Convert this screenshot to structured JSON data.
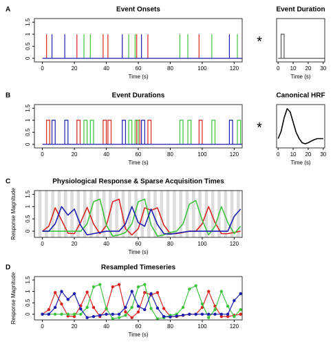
{
  "chart_data": [
    {
      "type": "stem",
      "label": "A",
      "title": "Event Onsets",
      "xlabel": "Time (s)",
      "xlim": [
        -5,
        125
      ],
      "xticks": [
        0,
        20,
        40,
        60,
        80,
        100,
        120
      ],
      "ylim": [
        -0.15,
        1.65
      ],
      "yticks": [
        0,
        0.5,
        1,
        1.5
      ],
      "series": [
        {
          "color": "#d9241f",
          "x": [
            2.6,
            21.6,
            38,
            41,
            59,
            66,
            98
          ],
          "values": [
            1,
            1,
            1,
            1,
            1,
            1,
            1
          ]
        },
        {
          "color": "#3cc43c",
          "x": [
            26,
            30,
            54,
            58,
            86,
            91,
            106,
            122
          ],
          "values": [
            1,
            1,
            1,
            1,
            1,
            1,
            1,
            1
          ]
        },
        {
          "color": "#1c1cae",
          "x": [
            6,
            14,
            50,
            62,
            117
          ],
          "values": [
            1,
            1,
            1,
            1,
            1
          ]
        }
      ]
    },
    {
      "type": "step",
      "label": "B",
      "title": "Event Durations",
      "xlabel": "Time (s)",
      "duration": 2,
      "xlim": [
        -5,
        125
      ],
      "xticks": [
        0,
        20,
        40,
        60,
        80,
        100,
        120
      ],
      "ylim": [
        -0.15,
        1.65
      ],
      "yticks": [
        0,
        0.5,
        1,
        1.5
      ],
      "series": [
        {
          "color": "#d9241f",
          "x": [
            2.6,
            21.6,
            38,
            41,
            59,
            66,
            98
          ],
          "values": [
            1,
            1,
            1,
            1,
            1,
            1,
            1
          ]
        },
        {
          "color": "#3cc43c",
          "x": [
            26,
            30,
            54,
            58,
            86,
            91,
            106,
            122
          ],
          "values": [
            1,
            1,
            1,
            1,
            1,
            1,
            1,
            1
          ]
        },
        {
          "color": "#1c1cae",
          "x": [
            6,
            14,
            50,
            62,
            117
          ],
          "values": [
            1,
            1,
            1,
            1,
            1
          ]
        }
      ]
    },
    {
      "type": "line",
      "label": "C",
      "title": "Physiological Response & Sparse Acquisition Times",
      "xlabel": "Time (s)",
      "ylabel": "Response Magnitude",
      "bands": true,
      "xlim": [
        -5,
        125
      ],
      "xticks": [
        0,
        20,
        40,
        60,
        80,
        100,
        120
      ],
      "ylim": [
        -0.25,
        1.65
      ],
      "yticks": [
        0,
        0.5,
        1,
        1.5
      ],
      "x": [
        0,
        4,
        8,
        12,
        16,
        20,
        24,
        28,
        32,
        36,
        40,
        44,
        48,
        52,
        56,
        60,
        64,
        68,
        72,
        76,
        80,
        84,
        88,
        92,
        96,
        100,
        104,
        108,
        112,
        116,
        120,
        124
      ],
      "series": [
        {
          "color": "#d9241f",
          "values": [
            0,
            0.2,
            0.95,
            0.45,
            -0.08,
            -0.1,
            0.37,
            0.97,
            0.3,
            -0.1,
            0.23,
            1.2,
            1.3,
            0.1,
            -0.15,
            0.1,
            0.95,
            0.85,
            0.95,
            0.25,
            -0.1,
            -0.1,
            -0.05,
            0,
            0,
            0.3,
            1.0,
            0.35,
            -0.1,
            -0.1,
            -0.05,
            0
          ]
        },
        {
          "color": "#3cc43c",
          "values": [
            0,
            0,
            0,
            0,
            0,
            0,
            0,
            0.3,
            1.2,
            1.3,
            0.25,
            -0.2,
            -0.15,
            -0.05,
            0.3,
            1.2,
            1.3,
            0.25,
            -0.2,
            -0.15,
            -0.05,
            0,
            0.3,
            1.1,
            1.25,
            0.45,
            -0.15,
            0.2,
            1.0,
            0.35,
            -0.1,
            0.2
          ]
        },
        {
          "color": "#1c1cae",
          "values": [
            0,
            0,
            0.3,
            1.0,
            0.65,
            0.9,
            0.23,
            -0.15,
            -0.1,
            -0.05,
            0,
            0,
            0,
            0.3,
            1.0,
            0.35,
            0.2,
            0.9,
            0.27,
            -0.1,
            -0.12,
            -0.08,
            -0.04,
            0,
            0,
            0,
            0,
            0,
            0,
            0,
            0.6,
            0.9
          ]
        }
      ]
    },
    {
      "type": "line",
      "label": "D",
      "title": "Resampled Timeseries",
      "xlabel": "Time (s)",
      "ylabel": "Response Magnitude",
      "markers": true,
      "xlim": [
        -5,
        125
      ],
      "xticks": [
        0,
        20,
        40,
        60,
        80,
        100,
        120
      ],
      "ylim": [
        -0.25,
        1.65
      ],
      "yticks": [
        0,
        0.5,
        1,
        1.5
      ],
      "x": [
        0,
        4,
        8,
        12,
        16,
        20,
        24,
        28,
        32,
        36,
        40,
        44,
        48,
        52,
        56,
        60,
        64,
        68,
        72,
        76,
        80,
        84,
        88,
        92,
        96,
        100,
        104,
        108,
        112,
        116,
        120,
        124
      ],
      "series": [
        {
          "color": "#d9241f",
          "values": [
            0,
            0.2,
            0.95,
            0.45,
            -0.08,
            -0.1,
            0.37,
            0.97,
            0.3,
            -0.1,
            0.23,
            1.2,
            1.3,
            0.1,
            -0.15,
            0.1,
            0.95,
            0.85,
            0.95,
            0.25,
            -0.1,
            -0.1,
            -0.05,
            0,
            0,
            0.3,
            1.0,
            0.35,
            -0.1,
            -0.1,
            -0.05,
            0
          ]
        },
        {
          "color": "#3cc43c",
          "values": [
            0,
            0,
            0,
            0,
            0,
            0,
            0,
            0.3,
            1.2,
            1.3,
            0.25,
            -0.2,
            -0.15,
            -0.05,
            0.3,
            1.2,
            1.3,
            0.25,
            -0.2,
            -0.15,
            -0.05,
            0,
            0.3,
            1.1,
            1.25,
            0.45,
            -0.15,
            0.2,
            1.0,
            0.35,
            -0.1,
            0.2
          ]
        },
        {
          "color": "#1c1cae",
          "values": [
            0,
            0,
            0.3,
            1.0,
            0.65,
            0.9,
            0.23,
            -0.15,
            -0.1,
            -0.05,
            0,
            0,
            0,
            0.3,
            1.0,
            0.35,
            0.2,
            0.9,
            0.27,
            -0.1,
            -0.12,
            -0.08,
            -0.04,
            0,
            0,
            0,
            0,
            0,
            0,
            0,
            0.6,
            0.9
          ]
        }
      ]
    },
    {
      "type": "step",
      "title": "Event Duration",
      "xlabel": "Time (s)",
      "operator": "*",
      "duration": 2,
      "xlim": [
        -1,
        31
      ],
      "xticks": [
        0,
        10,
        20,
        30
      ],
      "ylim": [
        -0.15,
        1.65
      ],
      "series": [
        {
          "color": "#555555",
          "x": [
            2
          ],
          "values": [
            1
          ]
        }
      ]
    },
    {
      "type": "line",
      "title": "Canonical HRF",
      "xlabel": "Time (s)",
      "operator": "*",
      "xlim": [
        -1,
        31
      ],
      "xticks": [
        0,
        10,
        20,
        30
      ],
      "ylim": [
        -0.45,
        1.65
      ],
      "x": [
        0,
        2,
        4,
        6,
        8,
        10,
        12,
        14,
        16,
        18,
        20,
        22,
        24,
        26,
        28,
        30
      ],
      "series": [
        {
          "color": "#000000",
          "values": [
            0,
            0.35,
            1.0,
            1.45,
            1.3,
            0.8,
            0.3,
            0,
            -0.2,
            -0.25,
            -0.2,
            -0.12,
            -0.05,
            0,
            0,
            0
          ]
        }
      ]
    }
  ]
}
